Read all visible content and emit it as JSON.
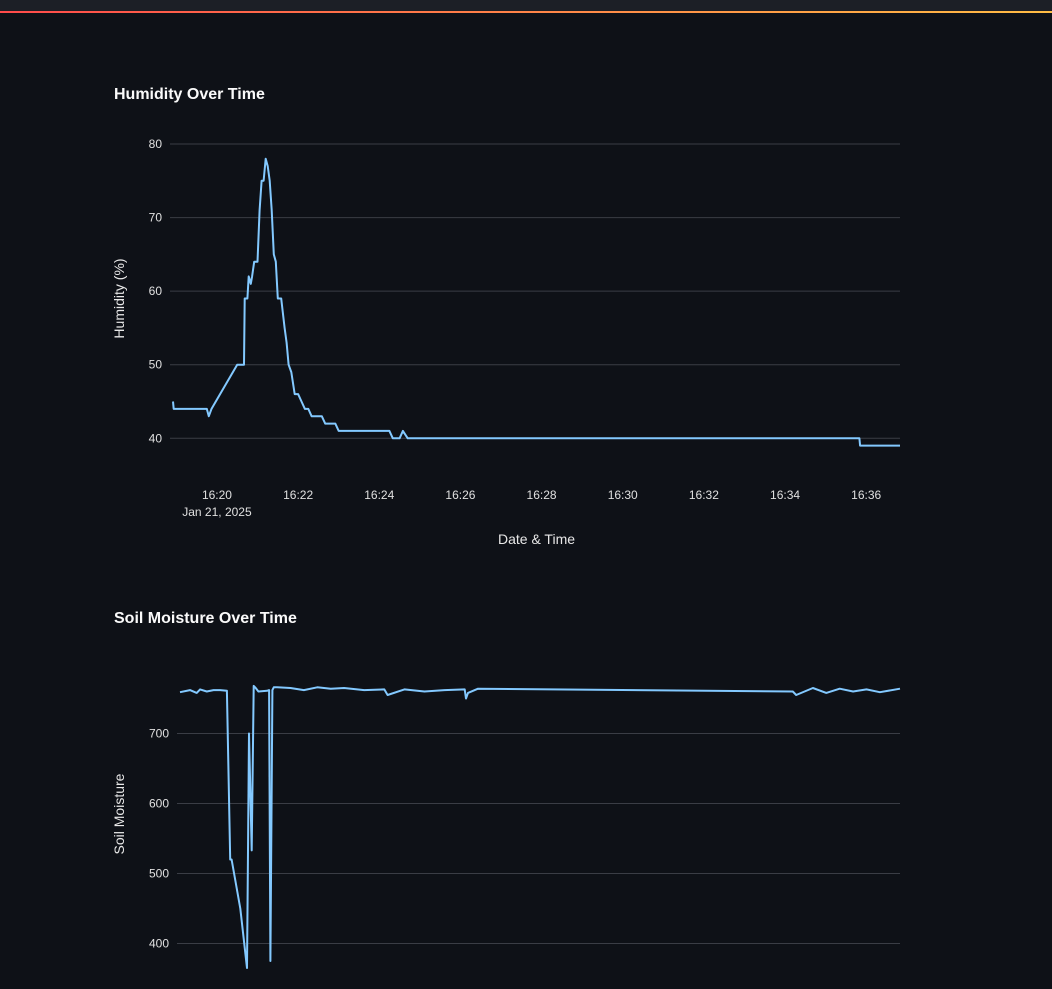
{
  "colors": {
    "background": "#0e1117",
    "series": "#83c9ff",
    "grid": "#3a3d45"
  },
  "chart_data": [
    {
      "type": "line",
      "title": "Humidity Over Time",
      "xlabel": "Date & Time",
      "ylabel": "Humidity (%)",
      "x_date_label": "Jan 21, 2025",
      "x_ticks": [
        "16:20",
        "16:22",
        "16:24",
        "16:26",
        "16:28",
        "16:30",
        "16:32",
        "16:34",
        "16:36"
      ],
      "x_tick_values": [
        "16:20",
        "16:22",
        "16:24",
        "16:26",
        "16:28",
        "16:30",
        "16:32",
        "16:34",
        "16:36"
      ],
      "xlim": [
        "16:18:55",
        "16:36:50"
      ],
      "y_ticks": [
        40,
        50,
        60,
        70,
        80
      ],
      "ylim": [
        38,
        80
      ],
      "grid": true,
      "series": [
        {
          "x": [
            "16:18:55",
            "16:18:56",
            "16:19:45",
            "16:19:48",
            "16:19:52",
            "16:20:30",
            "16:20:40",
            "16:20:41",
            "16:20:45",
            "16:20:47",
            "16:20:50",
            "16:20:52",
            "16:20:55",
            "16:21:00",
            "16:21:03",
            "16:21:06",
            "16:21:09",
            "16:21:12",
            "16:21:15",
            "16:21:18",
            "16:21:21",
            "16:21:24",
            "16:21:27",
            "16:21:30",
            "16:21:35",
            "16:21:40",
            "16:21:43",
            "16:21:46",
            "16:21:50",
            "16:21:55",
            "16:22:00",
            "16:22:05",
            "16:22:10",
            "16:22:15",
            "16:22:20",
            "16:22:25",
            "16:22:35",
            "16:22:40",
            "16:22:55",
            "16:23:00",
            "16:23:20",
            "16:23:25",
            "16:24:15",
            "16:24:20",
            "16:24:30",
            "16:24:35",
            "16:24:42",
            "16:35:50",
            "16:35:51",
            "16:36:50"
          ],
          "y": [
            45,
            44,
            44,
            43,
            44,
            50,
            50,
            59,
            59,
            62,
            61,
            62,
            64,
            64,
            71,
            75,
            75,
            78,
            77,
            75,
            71,
            65,
            64,
            59,
            59,
            55,
            53,
            50,
            49,
            46,
            46,
            45,
            44,
            44,
            43,
            43,
            43,
            42,
            42,
            41,
            41,
            41,
            41,
            40,
            40,
            41,
            40,
            40,
            39,
            39
          ]
        }
      ]
    },
    {
      "type": "line",
      "title": "Soil Moisture Over Time",
      "xlabel": "",
      "ylabel": "Soil Moisture",
      "xlim": [
        "16:18:55",
        "16:36:50"
      ],
      "y_ticks": [
        400,
        500,
        600,
        700
      ],
      "ylim": [
        385,
        785
      ],
      "grid": true,
      "series": [
        {
          "x": [
            "16:18:55",
            "16:19:10",
            "16:19:20",
            "16:19:25",
            "16:19:35",
            "16:19:45",
            "16:19:55",
            "16:20:05",
            "16:20:10",
            "16:20:12",
            "16:20:25",
            "16:20:35",
            "16:20:38",
            "16:20:42",
            "16:20:45",
            "16:20:48",
            "16:20:52",
            "16:21:05",
            "16:21:08",
            "16:21:10",
            "16:21:13",
            "16:21:15",
            "16:21:20",
            "16:21:40",
            "16:22:00",
            "16:22:20",
            "16:22:40",
            "16:23:00",
            "16:23:30",
            "16:24:00",
            "16:24:05",
            "16:24:30",
            "16:25:00",
            "16:25:30",
            "16:26:00",
            "16:26:02",
            "16:26:05",
            "16:26:20",
            "16:34:10",
            "16:34:15",
            "16:34:40",
            "16:35:00",
            "16:35:20",
            "16:35:40",
            "16:36:00",
            "16:36:20",
            "16:36:50"
          ],
          "y": [
            759,
            762,
            758,
            763,
            760,
            762,
            762,
            761,
            520,
            520,
            450,
            365,
            700,
            533,
            768,
            765,
            760,
            761,
            762,
            375,
            762,
            766,
            766,
            765,
            762,
            766,
            764,
            765,
            762,
            763,
            755,
            763,
            760,
            762,
            763,
            750,
            758,
            764,
            760,
            755,
            765,
            758,
            764,
            760,
            763,
            759,
            764
          ]
        }
      ]
    }
  ]
}
